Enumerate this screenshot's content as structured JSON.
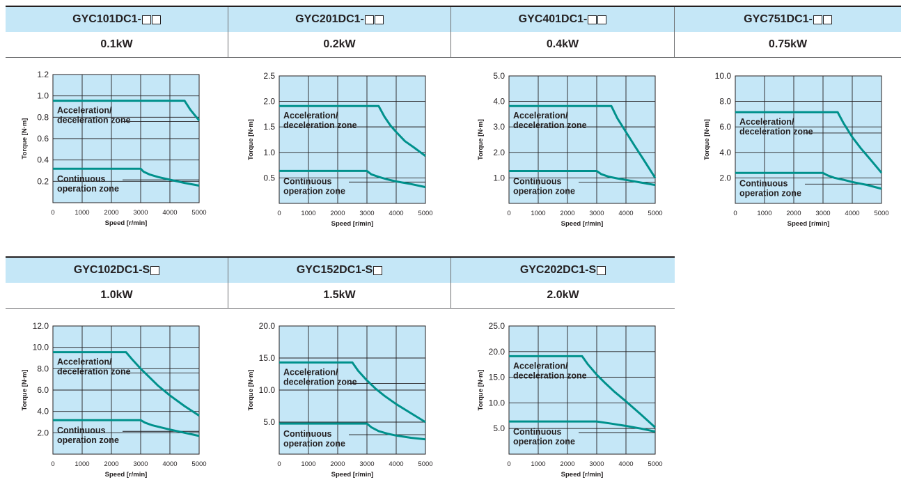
{
  "rows": [
    {
      "models": [
        {
          "prefix": "GYC101DC1-",
          "boxes": 2
        },
        {
          "prefix": "GYC201DC1-",
          "boxes": 2
        },
        {
          "prefix": "GYC401DC1-",
          "boxes": 2
        },
        {
          "prefix": "GYC751DC1-",
          "boxes": 2
        }
      ],
      "powers": [
        "0.1kW",
        "0.2kW",
        "0.4kW",
        "0.75kW"
      ]
    },
    {
      "models": [
        {
          "prefix": "GYC102DC1-S",
          "boxes": 1
        },
        {
          "prefix": "GYC152DC1-S",
          "boxes": 1
        },
        {
          "prefix": "GYC202DC1-S",
          "boxes": 1
        }
      ],
      "powers": [
        "1.0kW",
        "1.5kW",
        "2.0kW"
      ]
    }
  ],
  "colors": {
    "plot_bg": "#c5e7f7",
    "curve": "#00918c",
    "header_bg": "#c5e7f7",
    "grid": "#231f20"
  },
  "chart_data": [
    {
      "type": "line",
      "xlabel": "Speed [r/min]",
      "ylabel": "Torque [N·m]",
      "xlim": [
        0,
        5000
      ],
      "ylim": [
        0,
        1.2
      ],
      "x_ticks": [
        "0",
        "1000",
        "2000",
        "3000",
        "4000",
        "5000"
      ],
      "y_ticks": [
        "0.2",
        "0.4",
        "0.6",
        "0.8",
        "1.0",
        "1.2"
      ],
      "grid": true,
      "annotations": [
        "Acceleration/",
        "deceleration zone",
        "Continuous",
        "operation zone"
      ],
      "series": [
        {
          "x": [
            0,
            4500,
            4700,
            4850,
            5000
          ],
          "y": [
            0.955,
            0.955,
            0.87,
            0.82,
            0.77
          ]
        },
        {
          "x": [
            0,
            3000,
            3100,
            3300,
            3600,
            4000,
            4500,
            5000
          ],
          "y": [
            0.318,
            0.318,
            0.29,
            0.265,
            0.24,
            0.215,
            0.185,
            0.16
          ]
        }
      ]
    },
    {
      "type": "line",
      "xlabel": "Speed [r/min]",
      "ylabel": "Torque [N·m]",
      "xlim": [
        0,
        5000
      ],
      "ylim": [
        0,
        2.5
      ],
      "x_ticks": [
        "0",
        "1000",
        "2000",
        "3000",
        "4000",
        "5000"
      ],
      "y_ticks": [
        "0.5",
        "1.0",
        "1.5",
        "2.0",
        "2.5"
      ],
      "grid": true,
      "annotations": [
        "Acceleration/",
        "deceleration zone",
        "Continuous",
        "operation zone"
      ],
      "series": [
        {
          "x": [
            0,
            3400,
            3600,
            3800,
            4000,
            4300,
            4600,
            5000
          ],
          "y": [
            1.91,
            1.91,
            1.7,
            1.53,
            1.4,
            1.22,
            1.1,
            0.93
          ]
        },
        {
          "x": [
            0,
            3000,
            3150,
            3400,
            3700,
            4000,
            4500,
            5000
          ],
          "y": [
            0.637,
            0.637,
            0.57,
            0.52,
            0.47,
            0.43,
            0.38,
            0.32
          ]
        }
      ]
    },
    {
      "type": "line",
      "xlabel": "Speed [r/min]",
      "ylabel": "Torque [N·m]",
      "xlim": [
        0,
        5000
      ],
      "ylim": [
        0,
        5.0
      ],
      "x_ticks": [
        "0",
        "1000",
        "2000",
        "3000",
        "4000",
        "5000"
      ],
      "y_ticks": [
        "1.0",
        "2.0",
        "3.0",
        "4.0",
        "5.0"
      ],
      "grid": true,
      "annotations": [
        "Acceleration/",
        "deceleration zone",
        "Continuous",
        "operation zone"
      ],
      "series": [
        {
          "x": [
            0,
            3500,
            3700,
            4000,
            4300,
            4600,
            5000
          ],
          "y": [
            3.82,
            3.82,
            3.35,
            2.8,
            2.25,
            1.72,
            1.0
          ]
        },
        {
          "x": [
            0,
            3000,
            3150,
            3400,
            3700,
            4000,
            4500,
            5000
          ],
          "y": [
            1.27,
            1.27,
            1.15,
            1.05,
            0.98,
            0.92,
            0.82,
            0.72
          ]
        }
      ]
    },
    {
      "type": "line",
      "xlabel": "Speed [r/min]",
      "ylabel": "Torque [N·m]",
      "xlim": [
        0,
        5000
      ],
      "ylim": [
        0,
        10.0
      ],
      "x_ticks": [
        "0",
        "1000",
        "2000",
        "3000",
        "4000",
        "5000"
      ],
      "y_ticks": [
        "2.0",
        "4.0",
        "6.0",
        "8.0",
        "10.0"
      ],
      "grid": true,
      "annotations": [
        "Acceleration/",
        "deceleration zone",
        "Continuous",
        "operation zone"
      ],
      "series": [
        {
          "x": [
            0,
            3500,
            3700,
            4000,
            4300,
            4600,
            5000
          ],
          "y": [
            7.16,
            7.16,
            6.3,
            5.2,
            4.3,
            3.5,
            2.4
          ]
        },
        {
          "x": [
            0,
            3000,
            3150,
            3400,
            3700,
            4000,
            4500,
            5000
          ],
          "y": [
            2.39,
            2.39,
            2.2,
            2.0,
            1.85,
            1.68,
            1.45,
            1.15
          ]
        }
      ]
    },
    {
      "type": "line",
      "xlabel": "Speed [r/min]",
      "ylabel": "Torque [N·m]",
      "xlim": [
        0,
        5000
      ],
      "ylim": [
        0,
        12.0
      ],
      "x_ticks": [
        "0",
        "1000",
        "2000",
        "3000",
        "4000",
        "5000"
      ],
      "y_ticks": [
        "2.0",
        "4.0",
        "6.0",
        "8.0",
        "10.0",
        "12.0"
      ],
      "grid": true,
      "annotations": [
        "Acceleration/",
        "deceleration zone",
        "Continuous",
        "operation zone"
      ],
      "series": [
        {
          "x": [
            0,
            2500,
            2700,
            3000,
            3300,
            3600,
            4000,
            4500,
            5000
          ],
          "y": [
            9.55,
            9.55,
            8.9,
            8.0,
            7.2,
            6.4,
            5.5,
            4.5,
            3.6
          ]
        },
        {
          "x": [
            0,
            3000,
            3150,
            3400,
            3700,
            4000,
            4500,
            5000
          ],
          "y": [
            3.18,
            3.18,
            2.95,
            2.7,
            2.5,
            2.3,
            2.0,
            1.7
          ]
        }
      ]
    },
    {
      "type": "line",
      "xlabel": "Speed [r/min]",
      "ylabel": "Torque [N·m]",
      "xlim": [
        0,
        5000
      ],
      "ylim": [
        0,
        20.0
      ],
      "x_ticks": [
        "0",
        "1000",
        "2000",
        "3000",
        "4000",
        "5000"
      ],
      "y_ticks": [
        "5.0",
        "10.0",
        "15.0",
        "20.0"
      ],
      "grid": true,
      "annotations": [
        "Acceleration/",
        "deceleration zone",
        "Continuous",
        "operation zone"
      ],
      "series": [
        {
          "x": [
            0,
            2500,
            2700,
            3000,
            3300,
            3600,
            4000,
            4500,
            5000
          ],
          "y": [
            14.3,
            14.3,
            13.0,
            11.5,
            10.2,
            9.1,
            7.8,
            6.4,
            5.0
          ]
        },
        {
          "x": [
            0,
            3000,
            3150,
            3400,
            3700,
            4000,
            4500,
            5000
          ],
          "y": [
            4.77,
            4.77,
            4.2,
            3.6,
            3.2,
            2.9,
            2.55,
            2.3
          ]
        }
      ]
    },
    {
      "type": "line",
      "xlabel": "Speed [r/min]",
      "ylabel": "Torque [N·m]",
      "xlim": [
        0,
        5000
      ],
      "ylim": [
        0,
        25.0
      ],
      "x_ticks": [
        "0",
        "1000",
        "2000",
        "3000",
        "4000",
        "5000"
      ],
      "y_ticks": [
        "5.0",
        "10.0",
        "15.0",
        "20.0",
        "25.0"
      ],
      "grid": true,
      "annotations": [
        "Acceleration/",
        "deceleration zone",
        "Continuous",
        "operation zone"
      ],
      "series": [
        {
          "x": [
            0,
            2500,
            2700,
            3000,
            3300,
            3600,
            4000,
            4500,
            5000
          ],
          "y": [
            19.1,
            19.1,
            17.5,
            15.5,
            13.8,
            12.2,
            10.3,
            7.8,
            5.2
          ]
        },
        {
          "x": [
            0,
            3000,
            3500,
            4000,
            4500,
            5000
          ],
          "y": [
            6.37,
            6.37,
            5.95,
            5.5,
            5.0,
            4.4
          ]
        }
      ]
    }
  ]
}
